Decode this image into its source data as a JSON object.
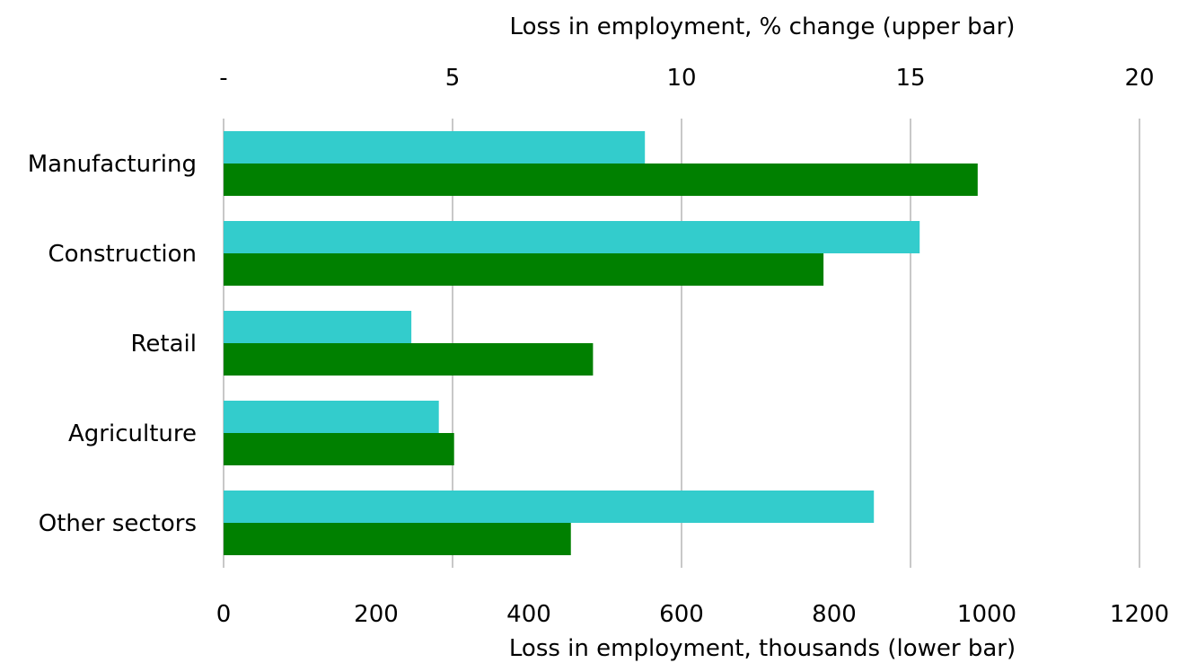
{
  "chart_data": {
    "type": "bar",
    "orientation": "horizontal",
    "categories": [
      "Manufacturing",
      "Construction",
      "Retail",
      "Agriculture",
      "Other sectors"
    ],
    "series": [
      {
        "axis": "top",
        "color": "#33CCCC",
        "values": [
          9.2,
          15.2,
          4.1,
          4.7,
          14.2
        ]
      },
      {
        "axis": "bottom",
        "color": "#008000",
        "values": [
          988,
          786,
          484,
          302,
          455
        ]
      }
    ],
    "top_axis": {
      "title": "Loss in employment, % change (upper bar)",
      "range": [
        0,
        20
      ],
      "tick_values": [
        0,
        5,
        10,
        15,
        20
      ],
      "tick_labels": [
        "-",
        "5",
        "10",
        "15",
        "20"
      ]
    },
    "bottom_axis": {
      "title": "Loss in employment, thousands (lower bar)",
      "range": [
        0,
        1200
      ],
      "tick_values": [
        0,
        200,
        400,
        600,
        800,
        1000,
        1200
      ],
      "tick_labels": [
        "0",
        "200",
        "400",
        "600",
        "800",
        "1000",
        "1200"
      ]
    },
    "grid": true,
    "legend": "none"
  }
}
